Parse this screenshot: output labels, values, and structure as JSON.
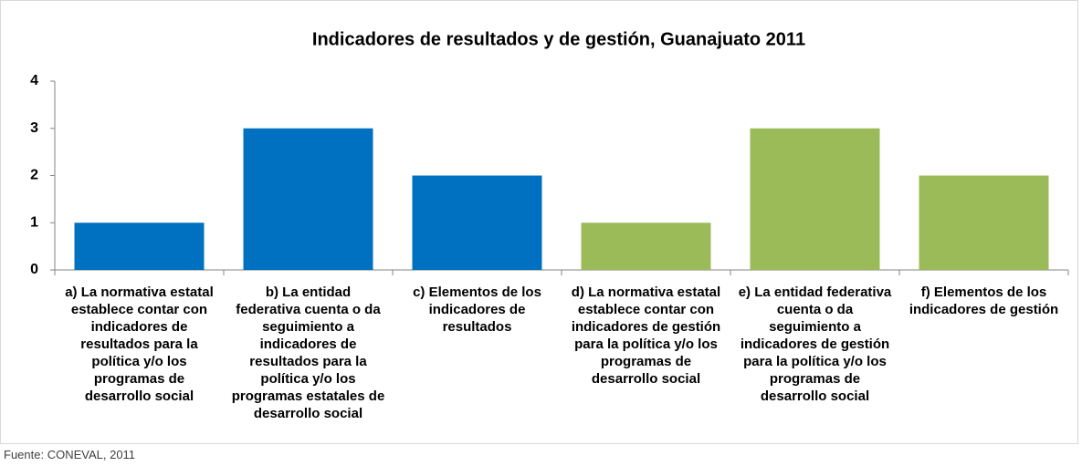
{
  "chart_data": {
    "type": "bar",
    "title": "Indicadores de resultados y de gestión, Guanajuato 2011",
    "categories": [
      "a) La normativa estatal establece contar con indicadores de resultados para la política y/o los programas de desarrollo social",
      "b) La entidad federativa cuenta o da seguimiento a indicadores de resultados para la política y/o los programas estatales de desarrollo social",
      "c) Elementos de los indicadores de resultados",
      "d) La normativa estatal establece contar con indicadores de gestión para la política y/o los programas de desarrollo social",
      "e) La entidad federativa cuenta o da seguimiento a indicadores de gestión para la política y/o los programas de desarrollo social",
      "f) Elementos de los indicadores de gestión"
    ],
    "values": [
      1,
      3,
      2,
      1,
      3,
      2
    ],
    "colors": [
      "#0070c0",
      "#0070c0",
      "#0070c0",
      "#9bbb59",
      "#9bbb59",
      "#9bbb59"
    ],
    "ylim": [
      0,
      4
    ],
    "yticks": [
      0,
      1,
      2,
      3,
      4
    ],
    "grid": false,
    "source": "Fuente: CONEVAL, 2011"
  }
}
